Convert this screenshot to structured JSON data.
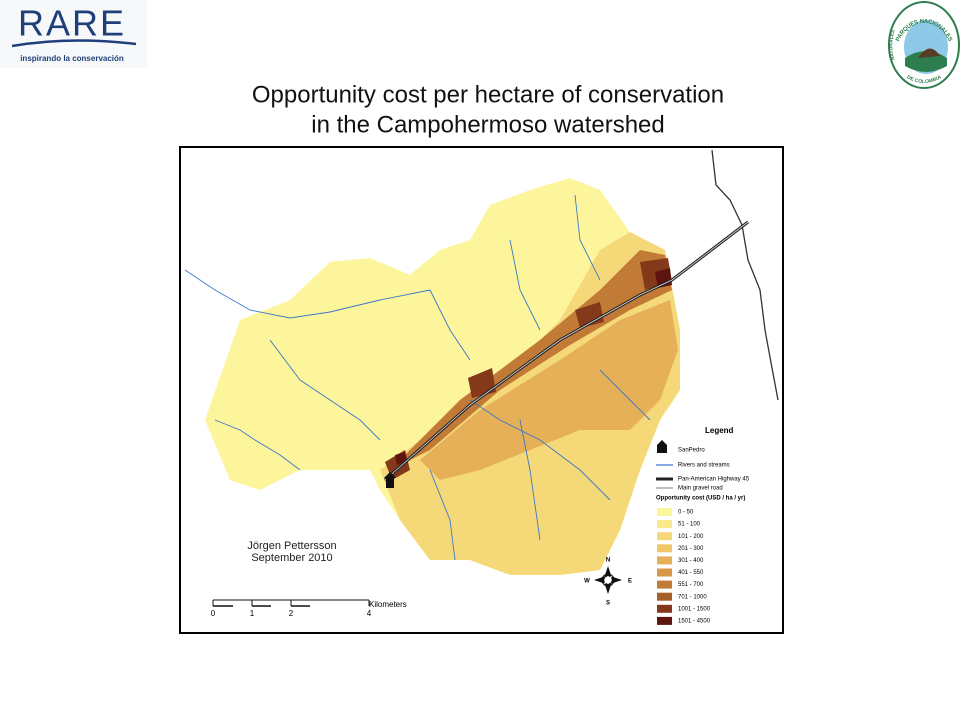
{
  "header": {
    "logo": "RARE",
    "tagline": "inspirando la conservación",
    "partner_logo": {
      "top": "PARQUES NACIONALES",
      "side": "NATURALES",
      "bottom": "DE COLOMBIA"
    }
  },
  "map": {
    "title": [
      "Opportunity cost per hectare of conservation",
      "in the Campohermoso watershed"
    ],
    "author": "Jörgen Pettersson",
    "date": "September 2010",
    "legend": {
      "title": "Legend",
      "features": [
        "SanPedro",
        "Rivers and streams",
        "Pan-American Highway 45",
        "Main gravel road"
      ],
      "cost_title": "Opportunity cost (USD / ha / yr)",
      "classes": [
        {
          "label": "0 - 50",
          "color": "#fdf59c"
        },
        {
          "label": "51 - 100",
          "color": "#f9e989"
        },
        {
          "label": "101 - 200",
          "color": "#f5d978"
        },
        {
          "label": "201 - 300",
          "color": "#f0c767"
        },
        {
          "label": "301 - 400",
          "color": "#e6b058"
        },
        {
          "label": "401 - 550",
          "color": "#d9974a"
        },
        {
          "label": "551 - 700",
          "color": "#c27a37"
        },
        {
          "label": "701 - 1000",
          "color": "#a65e26"
        },
        {
          "label": "1001 - 1500",
          "color": "#83391a"
        },
        {
          "label": "1501 - 4500",
          "color": "#5e1510"
        }
      ]
    },
    "scale": {
      "ticks": [
        0,
        1,
        2,
        4
      ],
      "unit": "Kilometers"
    },
    "compass": {
      "north": "N",
      "east": "E",
      "south": "S",
      "west": "W"
    }
  }
}
